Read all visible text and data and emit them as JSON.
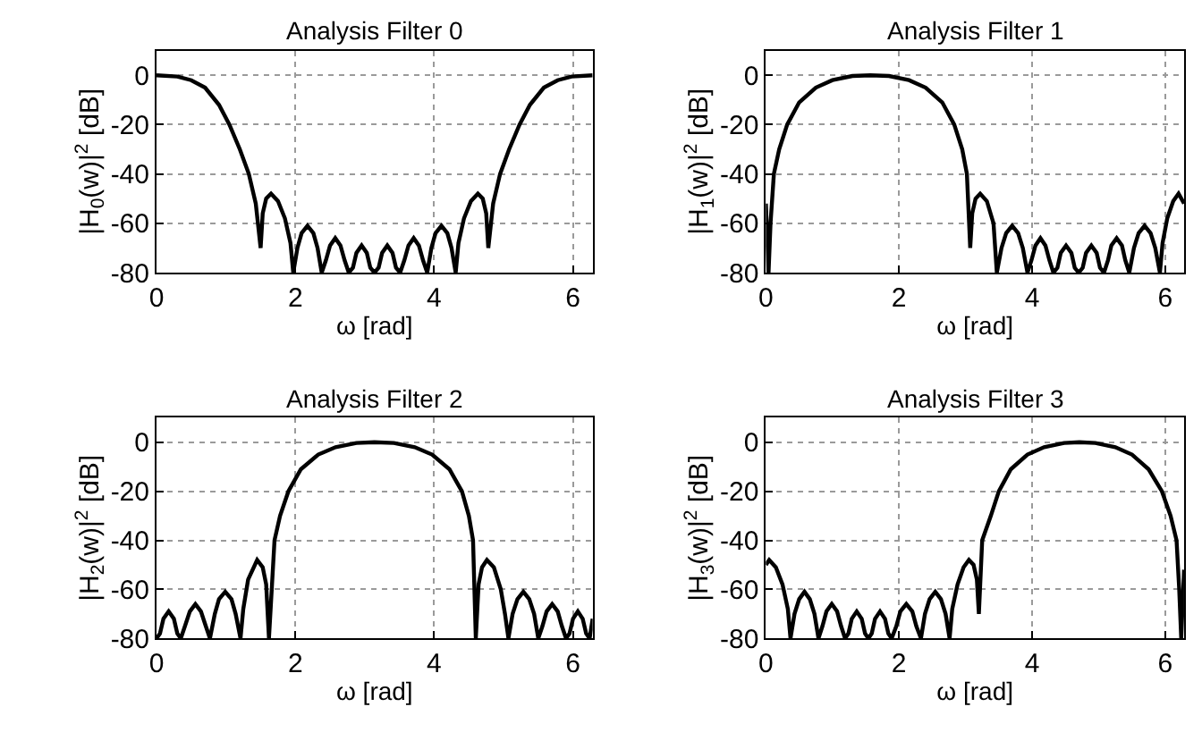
{
  "chart_data": [
    {
      "type": "line",
      "title": "Analysis Filter 0",
      "xlabel": "ω [rad]",
      "ylabel": "|H$_{0}$(w)|$^{2}$ [dB]",
      "color": "#000000",
      "xlim": [
        0,
        6.283
      ],
      "ylim": [
        -80,
        10
      ],
      "xticks": [
        0,
        2,
        4,
        6
      ],
      "yticks": [
        -80,
        -60,
        -40,
        -20,
        0
      ],
      "grid": true,
      "x": [
        0,
        0.3,
        0.5,
        0.7,
        0.9,
        1.05,
        1.2,
        1.33,
        1.43,
        1.5,
        1.53,
        1.58,
        1.65,
        1.75,
        1.85,
        1.93,
        1.97,
        2.03,
        2.09,
        2.175,
        2.26,
        2.32,
        2.38,
        2.44,
        2.5,
        2.575,
        2.65,
        2.71,
        2.77,
        2.83,
        2.88,
        2.955,
        3.03,
        3.08,
        3.14,
        3.2,
        3.25,
        3.325,
        3.4,
        3.45,
        3.51,
        3.57,
        3.63,
        3.705,
        3.78,
        3.84,
        3.9,
        3.96,
        4.02,
        4.105,
        4.19,
        4.25,
        4.31,
        4.35,
        4.43,
        4.53,
        4.63,
        4.7,
        4.75,
        4.78,
        4.85,
        4.95,
        5.08,
        5.23,
        5.38,
        5.58,
        5.78,
        5.98,
        6.283
      ],
      "values": [
        0,
        -0.5,
        -2,
        -5,
        -12,
        -20,
        -30,
        -40,
        -52,
        -70,
        -56,
        -50,
        -48,
        -51,
        -58,
        -68,
        -80,
        -70,
        -64,
        -61,
        -64,
        -70,
        -80,
        -75,
        -69,
        -66,
        -69,
        -75,
        -80,
        -78,
        -72,
        -69,
        -72,
        -78,
        -80,
        -78,
        -72,
        -69,
        -72,
        -78,
        -80,
        -75,
        -69,
        -66,
        -69,
        -75,
        -80,
        -70,
        -64,
        -61,
        -64,
        -70,
        -80,
        -68,
        -58,
        -51,
        -48,
        -50,
        -56,
        -70,
        -52,
        -40,
        -30,
        -20,
        -12,
        -5,
        -2,
        -0.5,
        0
      ]
    },
    {
      "type": "line",
      "title": "Analysis Filter 1",
      "xlabel": "ω [rad]",
      "ylabel": "|H$_{1}$(w)|$^{2}$ [dB]",
      "color": "#000000",
      "xlim": [
        0,
        6.283
      ],
      "ylim": [
        -80,
        10
      ],
      "xticks": [
        0,
        2,
        4,
        6
      ],
      "yticks": [
        -80,
        -60,
        -40,
        -20,
        0
      ],
      "grid": true,
      "x": [
        0,
        0.04,
        0.07,
        0.12,
        0.2,
        0.32,
        0.5,
        0.75,
        1.0,
        1.3,
        1.57,
        1.85,
        2.15,
        2.4,
        2.65,
        2.83,
        2.95,
        3.02,
        3.07,
        3.1,
        3.15,
        3.22,
        3.32,
        3.42,
        3.47,
        3.54,
        3.61,
        3.7,
        3.79,
        3.86,
        3.93,
        3.99,
        4.05,
        4.125,
        4.2,
        4.26,
        4.32,
        4.38,
        4.43,
        4.51,
        4.59,
        4.64,
        4.7,
        4.76,
        4.81,
        4.89,
        4.97,
        5.02,
        5.08,
        5.14,
        5.19,
        5.27,
        5.35,
        5.4,
        5.46,
        5.53,
        5.6,
        5.69,
        5.78,
        5.85,
        5.92,
        5.96,
        6.03,
        6.12,
        6.2,
        6.283
      ],
      "values": [
        -52,
        -80,
        -60,
        -40,
        -30,
        -20,
        -11,
        -5,
        -2,
        -0.3,
        0,
        -0.3,
        -2,
        -5,
        -11,
        -20,
        -30,
        -40,
        -70,
        -56,
        -50,
        -48,
        -51,
        -60,
        -80,
        -70,
        -64,
        -61,
        -64,
        -70,
        -80,
        -75,
        -69,
        -66,
        -69,
        -75,
        -80,
        -78,
        -72,
        -69,
        -72,
        -78,
        -80,
        -78,
        -72,
        -69,
        -72,
        -78,
        -80,
        -75,
        -69,
        -66,
        -69,
        -75,
        -80,
        -70,
        -64,
        -61,
        -64,
        -70,
        -80,
        -68,
        -58,
        -51,
        -48,
        -52
      ]
    },
    {
      "type": "line",
      "title": "Analysis Filter 2",
      "xlabel": "ω [rad]",
      "ylabel": "|H$_{2}$(w)|$^{2}$ [dB]",
      "color": "#000000",
      "xlim": [
        0,
        6.283
      ],
      "ylim": [
        -80,
        10
      ],
      "xticks": [
        0,
        2,
        4,
        6
      ],
      "yticks": [
        -80,
        -60,
        -40,
        -20,
        0
      ],
      "grid": true,
      "x": [
        0,
        0.05,
        0.1,
        0.175,
        0.25,
        0.3,
        0.35,
        0.41,
        0.48,
        0.56,
        0.64,
        0.71,
        0.77,
        0.84,
        0.9,
        0.99,
        1.08,
        1.14,
        1.21,
        1.25,
        1.32,
        1.45,
        1.53,
        1.58,
        1.62,
        1.66,
        1.7,
        1.78,
        1.9,
        2.08,
        2.33,
        2.58,
        2.88,
        3.14,
        3.42,
        3.72,
        3.97,
        4.22,
        4.4,
        4.5,
        4.56,
        4.6,
        4.64,
        4.69,
        4.76,
        4.86,
        4.96,
        5.02,
        5.07,
        5.13,
        5.2,
        5.285,
        5.37,
        5.44,
        5.5,
        5.56,
        5.62,
        5.7,
        5.78,
        5.84,
        5.9,
        5.95,
        6.0,
        6.07,
        6.14,
        6.19,
        6.24,
        6.283
      ],
      "values": [
        -80,
        -78,
        -72,
        -69,
        -72,
        -78,
        -80,
        -75,
        -69,
        -66,
        -69,
        -75,
        -80,
        -70,
        -64,
        -61,
        -64,
        -70,
        -80,
        -68,
        -56,
        -48,
        -51,
        -58,
        -80,
        -60,
        -40,
        -30,
        -20,
        -11,
        -5,
        -2,
        -0.3,
        0,
        -0.3,
        -2,
        -5,
        -11,
        -20,
        -30,
        -40,
        -80,
        -58,
        -51,
        -48,
        -51,
        -60,
        -70,
        -80,
        -70,
        -64,
        -61,
        -64,
        -70,
        -80,
        -75,
        -69,
        -66,
        -69,
        -75,
        -80,
        -78,
        -72,
        -69,
        -72,
        -78,
        -80,
        -72
      ]
    },
    {
      "type": "line",
      "title": "Analysis Filter 3",
      "xlabel": "ω [rad]",
      "ylabel": "|H$_{3}$(w)|$^{2}$ [dB]",
      "color": "#000000",
      "xlim": [
        0,
        6.283
      ],
      "ylim": [
        -80,
        10
      ],
      "xticks": [
        0,
        2,
        4,
        6
      ],
      "yticks": [
        -80,
        -60,
        -40,
        -20,
        0
      ],
      "grid": true,
      "x": [
        0,
        0.05,
        0.15,
        0.25,
        0.33,
        0.37,
        0.43,
        0.5,
        0.58,
        0.66,
        0.73,
        0.79,
        0.85,
        0.91,
        0.99,
        1.07,
        1.13,
        1.19,
        1.24,
        1.29,
        1.365,
        1.44,
        1.49,
        1.54,
        1.59,
        1.64,
        1.715,
        1.79,
        1.84,
        1.89,
        1.96,
        2.02,
        2.11,
        2.2,
        2.26,
        2.33,
        2.39,
        2.46,
        2.545,
        2.63,
        2.7,
        2.76,
        2.8,
        2.88,
        2.97,
        3.05,
        3.12,
        3.17,
        3.2,
        3.25,
        3.38,
        3.5,
        3.68,
        3.93,
        4.18,
        4.48,
        4.71,
        4.95,
        5.25,
        5.5,
        5.75,
        5.95,
        6.08,
        6.17,
        6.21,
        6.24,
        6.283
      ],
      "values": [
        -50,
        -48,
        -51,
        -58,
        -68,
        -80,
        -70,
        -64,
        -61,
        -64,
        -70,
        -80,
        -75,
        -69,
        -66,
        -69,
        -75,
        -80,
        -78,
        -72,
        -69,
        -72,
        -78,
        -80,
        -78,
        -72,
        -69,
        -72,
        -78,
        -80,
        -75,
        -69,
        -66,
        -69,
        -75,
        -80,
        -70,
        -64,
        -61,
        -64,
        -70,
        -80,
        -68,
        -58,
        -51,
        -48,
        -50,
        -56,
        -70,
        -40,
        -30,
        -20,
        -11,
        -5,
        -2,
        -0.3,
        0,
        -0.3,
        -2,
        -5,
        -11,
        -20,
        -30,
        -40,
        -60,
        -80,
        -52
      ]
    }
  ]
}
